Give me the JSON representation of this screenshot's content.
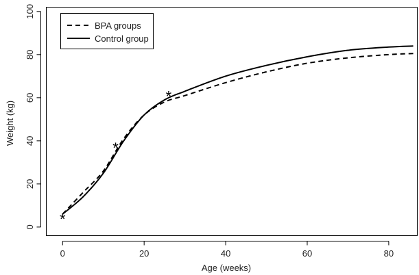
{
  "chart_data": {
    "type": "line",
    "xlabel": "Age (weeks)",
    "ylabel": "Weight (kg)",
    "xlim": [
      -4,
      87
    ],
    "ylim": [
      -4,
      102
    ],
    "xticks": [
      0,
      20,
      40,
      60,
      80
    ],
    "yticks": [
      0,
      20,
      40,
      60,
      80,
      100
    ],
    "grid": false,
    "legend": {
      "position": "top-left",
      "boxed": true
    },
    "series": [
      {
        "name": "BPA groups",
        "line_style": "dashed",
        "color": "#000000",
        "x": [
          0,
          5,
          10,
          15,
          20,
          25,
          30,
          40,
          50,
          60,
          70,
          80,
          86
        ],
        "y": [
          6,
          16,
          26,
          41,
          52,
          58,
          61,
          67,
          72,
          76,
          78.5,
          80,
          80.5
        ]
      },
      {
        "name": "Control group",
        "line_style": "solid",
        "color": "#000000",
        "x": [
          0,
          5,
          10,
          15,
          20,
          25,
          30,
          40,
          50,
          60,
          70,
          80,
          86
        ],
        "y": [
          6,
          14,
          25,
          40,
          52,
          59,
          63,
          70,
          75,
          79,
          82,
          83.5,
          84
        ]
      }
    ],
    "markers": [
      {
        "symbol": "*",
        "x": 0,
        "y": 5
      },
      {
        "symbol": "*",
        "x": 13,
        "y": 38
      },
      {
        "symbol": "*",
        "x": 26,
        "y": 62
      }
    ]
  }
}
